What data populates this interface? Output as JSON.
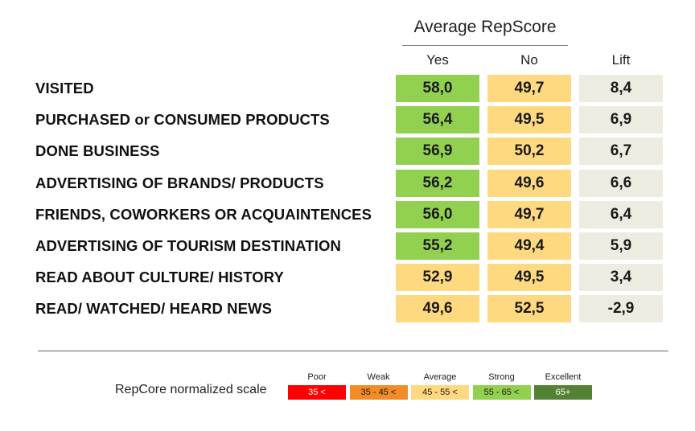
{
  "colors": {
    "green": "#92d050",
    "yellow": "#ffd97f",
    "lift_bg": "#eeece1",
    "poor": "#ff0000",
    "weak": "#f28c28",
    "average": "#ffd97f",
    "strong": "#92d050",
    "excellent": "#548235"
  },
  "chart_data": {
    "type": "table",
    "group_title": "Average RepScore",
    "columns": [
      "Yes",
      "No",
      "Lift"
    ],
    "rows": [
      {
        "label": "VISITED",
        "values": [
          "58,0",
          "49,7",
          "8,4"
        ],
        "colors": [
          "green",
          "yellow",
          "lift_bg"
        ]
      },
      {
        "label": "PURCHASED or CONSUMED PRODUCTS",
        "values": [
          "56,4",
          "49,5",
          "6,9"
        ],
        "colors": [
          "green",
          "yellow",
          "lift_bg"
        ]
      },
      {
        "label": "DONE BUSINESS",
        "values": [
          "56,9",
          "50,2",
          "6,7"
        ],
        "colors": [
          "green",
          "yellow",
          "lift_bg"
        ]
      },
      {
        "label": "ADVERTISING OF BRANDS/ PRODUCTS",
        "values": [
          "56,2",
          "49,6",
          "6,6"
        ],
        "colors": [
          "green",
          "yellow",
          "lift_bg"
        ]
      },
      {
        "label": "FRIENDS, COWORKERS OR ACQUAINTENCES",
        "values": [
          "56,0",
          "49,7",
          "6,4"
        ],
        "colors": [
          "green",
          "yellow",
          "lift_bg"
        ]
      },
      {
        "label": "ADVERTISING OF TOURISM DESTINATION",
        "values": [
          "55,2",
          "49,4",
          "5,9"
        ],
        "colors": [
          "green",
          "yellow",
          "lift_bg"
        ]
      },
      {
        "label": "READ ABOUT CULTURE/ HISTORY",
        "values": [
          "52,9",
          "49,5",
          "3,4"
        ],
        "colors": [
          "yellow",
          "yellow",
          "lift_bg"
        ]
      },
      {
        "label": "READ/ WATCHED/ HEARD NEWS",
        "values": [
          "49,6",
          "52,5",
          "-2,9"
        ],
        "colors": [
          "yellow",
          "yellow",
          "lift_bg"
        ]
      }
    ]
  },
  "legend": {
    "title": "RepCore normalized scale",
    "items": [
      {
        "name": "Poor",
        "range": "35 <",
        "color": "poor",
        "text_color": "#ffffff"
      },
      {
        "name": "Weak",
        "range": "35 - 45 <",
        "color": "weak",
        "text_color": "#1a1a1a"
      },
      {
        "name": "Average",
        "range": "45 - 55 <",
        "color": "average",
        "text_color": "#1a1a1a"
      },
      {
        "name": "Strong",
        "range": "55 - 65 <",
        "color": "strong",
        "text_color": "#1a1a1a"
      },
      {
        "name": "Excellent",
        "range": "65+",
        "color": "excellent",
        "text_color": "#ffffff"
      }
    ]
  }
}
